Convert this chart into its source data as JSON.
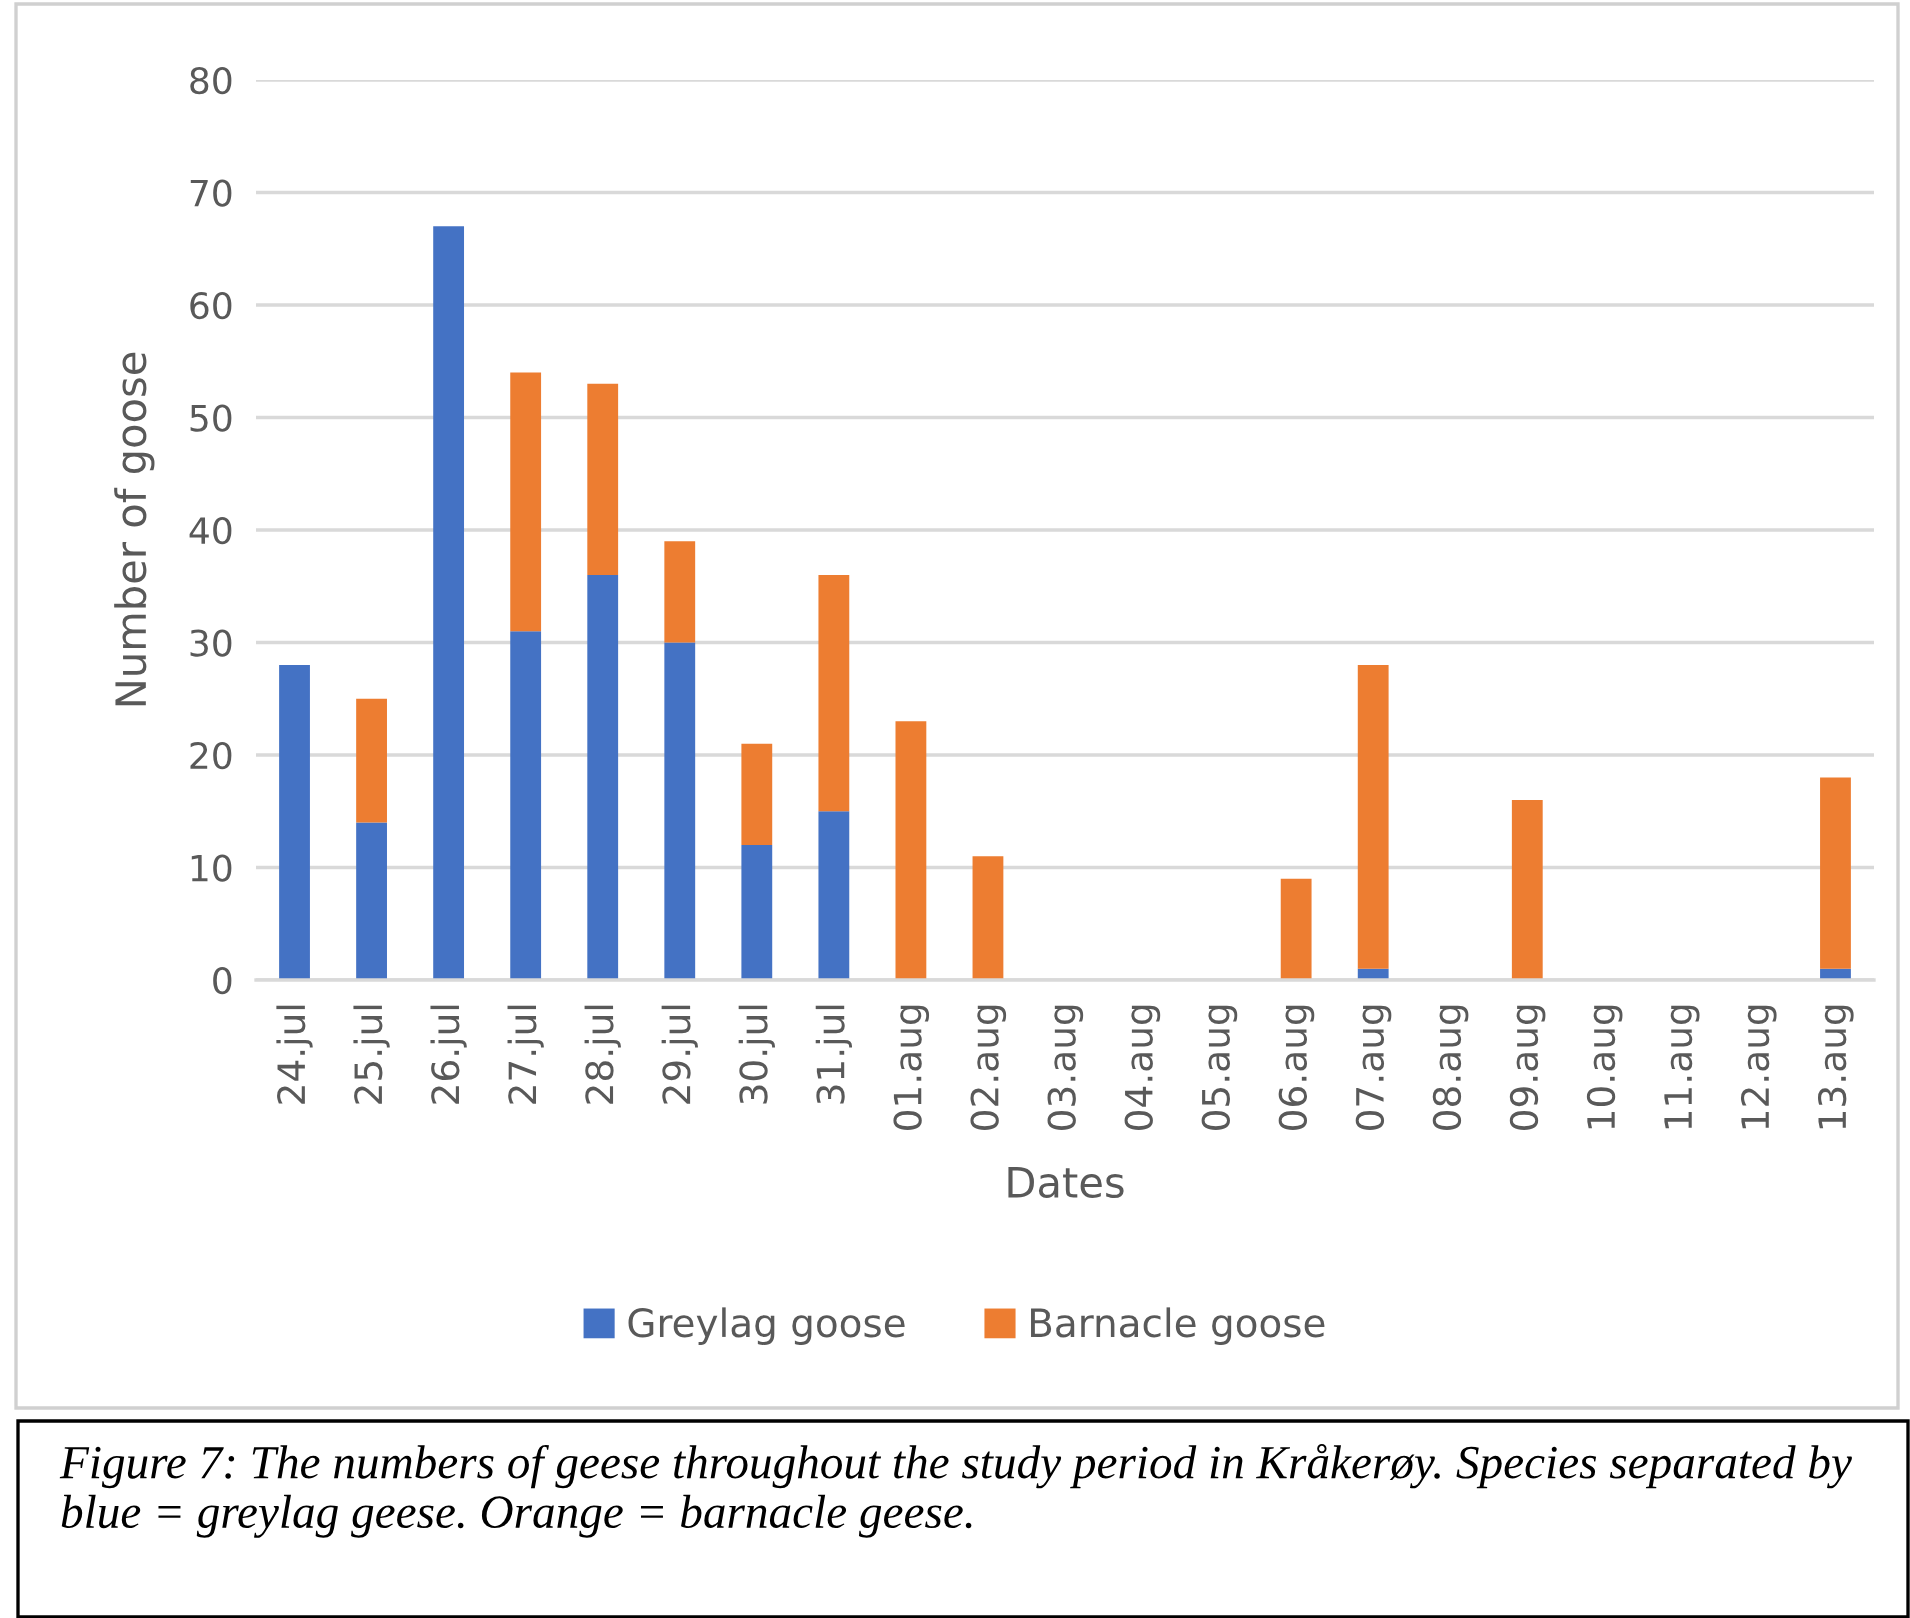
{
  "chart_data": {
    "type": "bar",
    "stacked": true,
    "categories": [
      "24.jul",
      "25.jul",
      "26.jul",
      "27.jul",
      "28.jul",
      "29.jul",
      "30.jul",
      "31.jul",
      "01.aug",
      "02.aug",
      "03.aug",
      "04.aug",
      "05.aug",
      "06.aug",
      "07.aug",
      "08.aug",
      "09.aug",
      "10.aug",
      "11.aug",
      "12.aug",
      "13.aug"
    ],
    "series": [
      {
        "name": "Greylag goose",
        "color": "#4472c4",
        "values": [
          28,
          14,
          67,
          31,
          36,
          30,
          12,
          15,
          0,
          0,
          0,
          0,
          0,
          0,
          1,
          0,
          0,
          0,
          0,
          0,
          1
        ]
      },
      {
        "name": "Barnacle goose",
        "color": "#ed7d31",
        "values": [
          0,
          11,
          0,
          23,
          17,
          9,
          9,
          21,
          23,
          11,
          0,
          0,
          0,
          9,
          27,
          0,
          16,
          0,
          0,
          0,
          17
        ]
      }
    ],
    "xlabel": "Dates",
    "ylabel": "Number of goose",
    "ylim": [
      0,
      80
    ],
    "yticks": [
      0,
      10,
      20,
      30,
      40,
      50,
      60,
      70,
      80
    ],
    "grid": "y",
    "legend": "bottom",
    "annotations": [
      "Figure 7: The numbers of geese throughout the study period in Kråkerøy. Species separated by blue = greylag geese. Orange = barnacle geese."
    ]
  }
}
